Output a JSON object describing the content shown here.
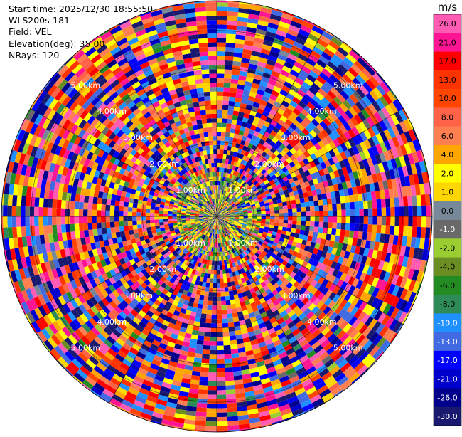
{
  "info": {
    "start_time": "Start time: 2025/12/30 18:55:50",
    "station": "WLS200s-181",
    "field": "Field: VEL",
    "elevation": "Elevation(deg): 35.00",
    "nrays": "NRays: 120"
  },
  "chart_data": {
    "type": "heatmap",
    "projection": "polar-ppi",
    "field": "VEL",
    "unit": "m/s",
    "nrays": 120,
    "max_range_km": 5.8,
    "range_ring_labels": [
      {
        "km": 1,
        "label": "1.00km"
      },
      {
        "km": 2,
        "label": "2.00km"
      },
      {
        "km": 3,
        "label": "3.00km"
      },
      {
        "km": 4,
        "label": "4.00km"
      },
      {
        "km": 5,
        "label": "5.00km"
      }
    ],
    "colorbar": {
      "unit": "m/s",
      "levels": [
        {
          "value": "26.0",
          "color": "#ff5ab4"
        },
        {
          "value": "21.0",
          "color": "#ff1493"
        },
        {
          "value": "17.0",
          "color": "#ff0000"
        },
        {
          "value": "13.0",
          "color": "#ff3300"
        },
        {
          "value": "10.0",
          "color": "#ff4500"
        },
        {
          "value": "8.0",
          "color": "#ff6347"
        },
        {
          "value": "6.0",
          "color": "#ff7f50"
        },
        {
          "value": "4.0",
          "color": "#ffa500"
        },
        {
          "value": "2.0",
          "color": "#ffff00"
        },
        {
          "value": "1.0",
          "color": "#ffd700"
        },
        {
          "value": "0.0",
          "color": "#778899"
        },
        {
          "value": "-1.0",
          "color": "#696969"
        },
        {
          "value": "-2.0",
          "color": "#9acd32"
        },
        {
          "value": "-4.0",
          "color": "#6b8e23"
        },
        {
          "value": "-6.0",
          "color": "#228b22"
        },
        {
          "value": "-8.0",
          "color": "#2e8b57"
        },
        {
          "value": "-10.0",
          "color": "#1e90ff"
        },
        {
          "value": "-13.0",
          "color": "#4169e1"
        },
        {
          "value": "-17.0",
          "color": "#0000ff"
        },
        {
          "value": "-21.0",
          "color": "#0000cd"
        },
        {
          "value": "-26.0",
          "color": "#00008b"
        },
        {
          "value": "-30.0",
          "color": "#191970"
        }
      ]
    },
    "grid": true
  }
}
